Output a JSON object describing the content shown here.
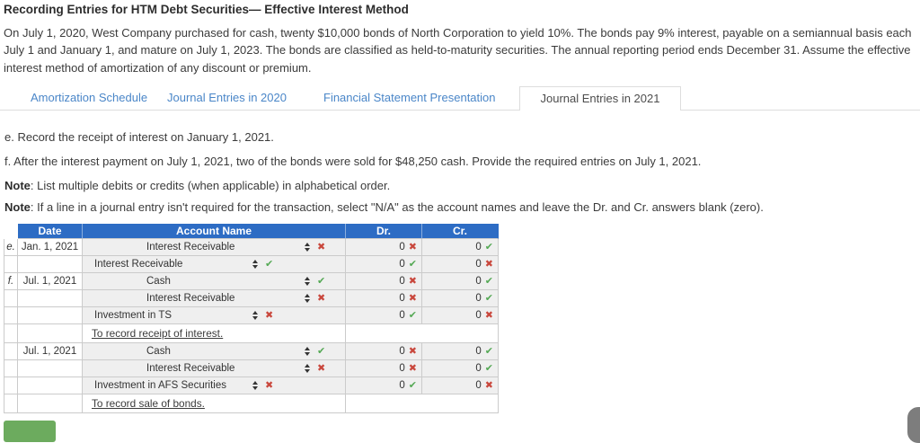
{
  "page": {
    "title": "Recording Entries for HTM Debt Securities— Effective Interest Method",
    "description": "On July 1, 2020, West Company purchased for cash, twenty $10,000 bonds of North Corporation to yield 10%. The bonds pay 9% interest, payable on a semiannual basis each July 1 and January 1, and mature on July 1, 2023. The bonds are classified as held-to-maturity securities. The annual reporting period ends December 31. Assume the effective interest method of amortization of any discount or premium."
  },
  "tabs": [
    {
      "label": "Amortization Schedule",
      "active": false
    },
    {
      "label": "Journal Entries in 2020",
      "active": false
    },
    {
      "label": "Financial Statement Presentation",
      "active": false
    },
    {
      "label": "Journal Entries in 2021",
      "active": true
    }
  ],
  "instructions": {
    "e": "e. Record the receipt of interest on January 1, 2021.",
    "f": "f. After the interest payment on July 1, 2021, two of the bonds were sold for $48,250 cash. Provide the required entries on July 1, 2021.",
    "note1_label": "Note",
    "note1_text": ": List multiple debits or credits (when applicable) in alphabetical order.",
    "note2_label": "Note",
    "note2_text": ": If a line in a journal entry isn't required for the transaction, select \"N/A\" as the account names and leave the Dr. and Cr. answers blank (zero)."
  },
  "journal_table": {
    "headers": {
      "date": "Date",
      "account": "Account Name",
      "dr": "Dr.",
      "cr": "Cr."
    },
    "rows": [
      {
        "kind": "entry",
        "letter": "e.",
        "date": "Jan. 1, 2021",
        "account": "Interest Receivable",
        "indent": 1,
        "account_mark": "wrong",
        "dr": "0",
        "dr_mark": "wrong",
        "cr": "0",
        "cr_mark": "correct"
      },
      {
        "kind": "entry",
        "letter": "",
        "date": "",
        "account": "Interest Receivable",
        "indent": 0,
        "account_mark": "correct",
        "dr": "0",
        "dr_mark": "correct",
        "cr": "0",
        "cr_mark": "wrong"
      },
      {
        "kind": "entry",
        "letter": "f.",
        "date": "Jul. 1, 2021",
        "account": "Cash",
        "indent": 1,
        "account_mark": "correct",
        "dr": "0",
        "dr_mark": "wrong",
        "cr": "0",
        "cr_mark": "correct"
      },
      {
        "kind": "entry",
        "letter": "",
        "date": "",
        "account": "Interest Receivable",
        "indent": 1,
        "account_mark": "wrong",
        "dr": "0",
        "dr_mark": "wrong",
        "cr": "0",
        "cr_mark": "correct"
      },
      {
        "kind": "entry",
        "letter": "",
        "date": "",
        "account": "Investment in TS",
        "indent": 0,
        "account_mark": "wrong",
        "dr": "0",
        "dr_mark": "correct",
        "cr": "0",
        "cr_mark": "wrong"
      },
      {
        "kind": "memo",
        "memo": "To record receipt of interest."
      },
      {
        "kind": "entry",
        "letter": "",
        "date": "Jul. 1, 2021",
        "account": "Cash",
        "indent": 1,
        "account_mark": "correct",
        "dr": "0",
        "dr_mark": "wrong",
        "cr": "0",
        "cr_mark": "correct"
      },
      {
        "kind": "entry",
        "letter": "",
        "date": "",
        "account": "Interest Receivable",
        "indent": 1,
        "account_mark": "wrong",
        "dr": "0",
        "dr_mark": "wrong",
        "cr": "0",
        "cr_mark": "correct"
      },
      {
        "kind": "entry",
        "letter": "",
        "date": "",
        "account": "Investment in AFS Securities",
        "indent": 0,
        "account_mark": "wrong",
        "dr": "0",
        "dr_mark": "correct",
        "cr": "0",
        "cr_mark": "wrong"
      },
      {
        "kind": "memo",
        "memo": "To record sale of bonds."
      }
    ]
  },
  "icons": {
    "correct": "✔",
    "wrong": "✖",
    "dropdown": "sort-arrows"
  },
  "colors": {
    "header_blue": "#2d6cc4",
    "tab_link_blue": "#4a86c8",
    "correct_green": "#55a955",
    "wrong_red": "#c9473c",
    "cell_gray": "#efefef",
    "check_button_green": "#6cab5e",
    "floating_widget_gray": "#7d7d7d"
  }
}
